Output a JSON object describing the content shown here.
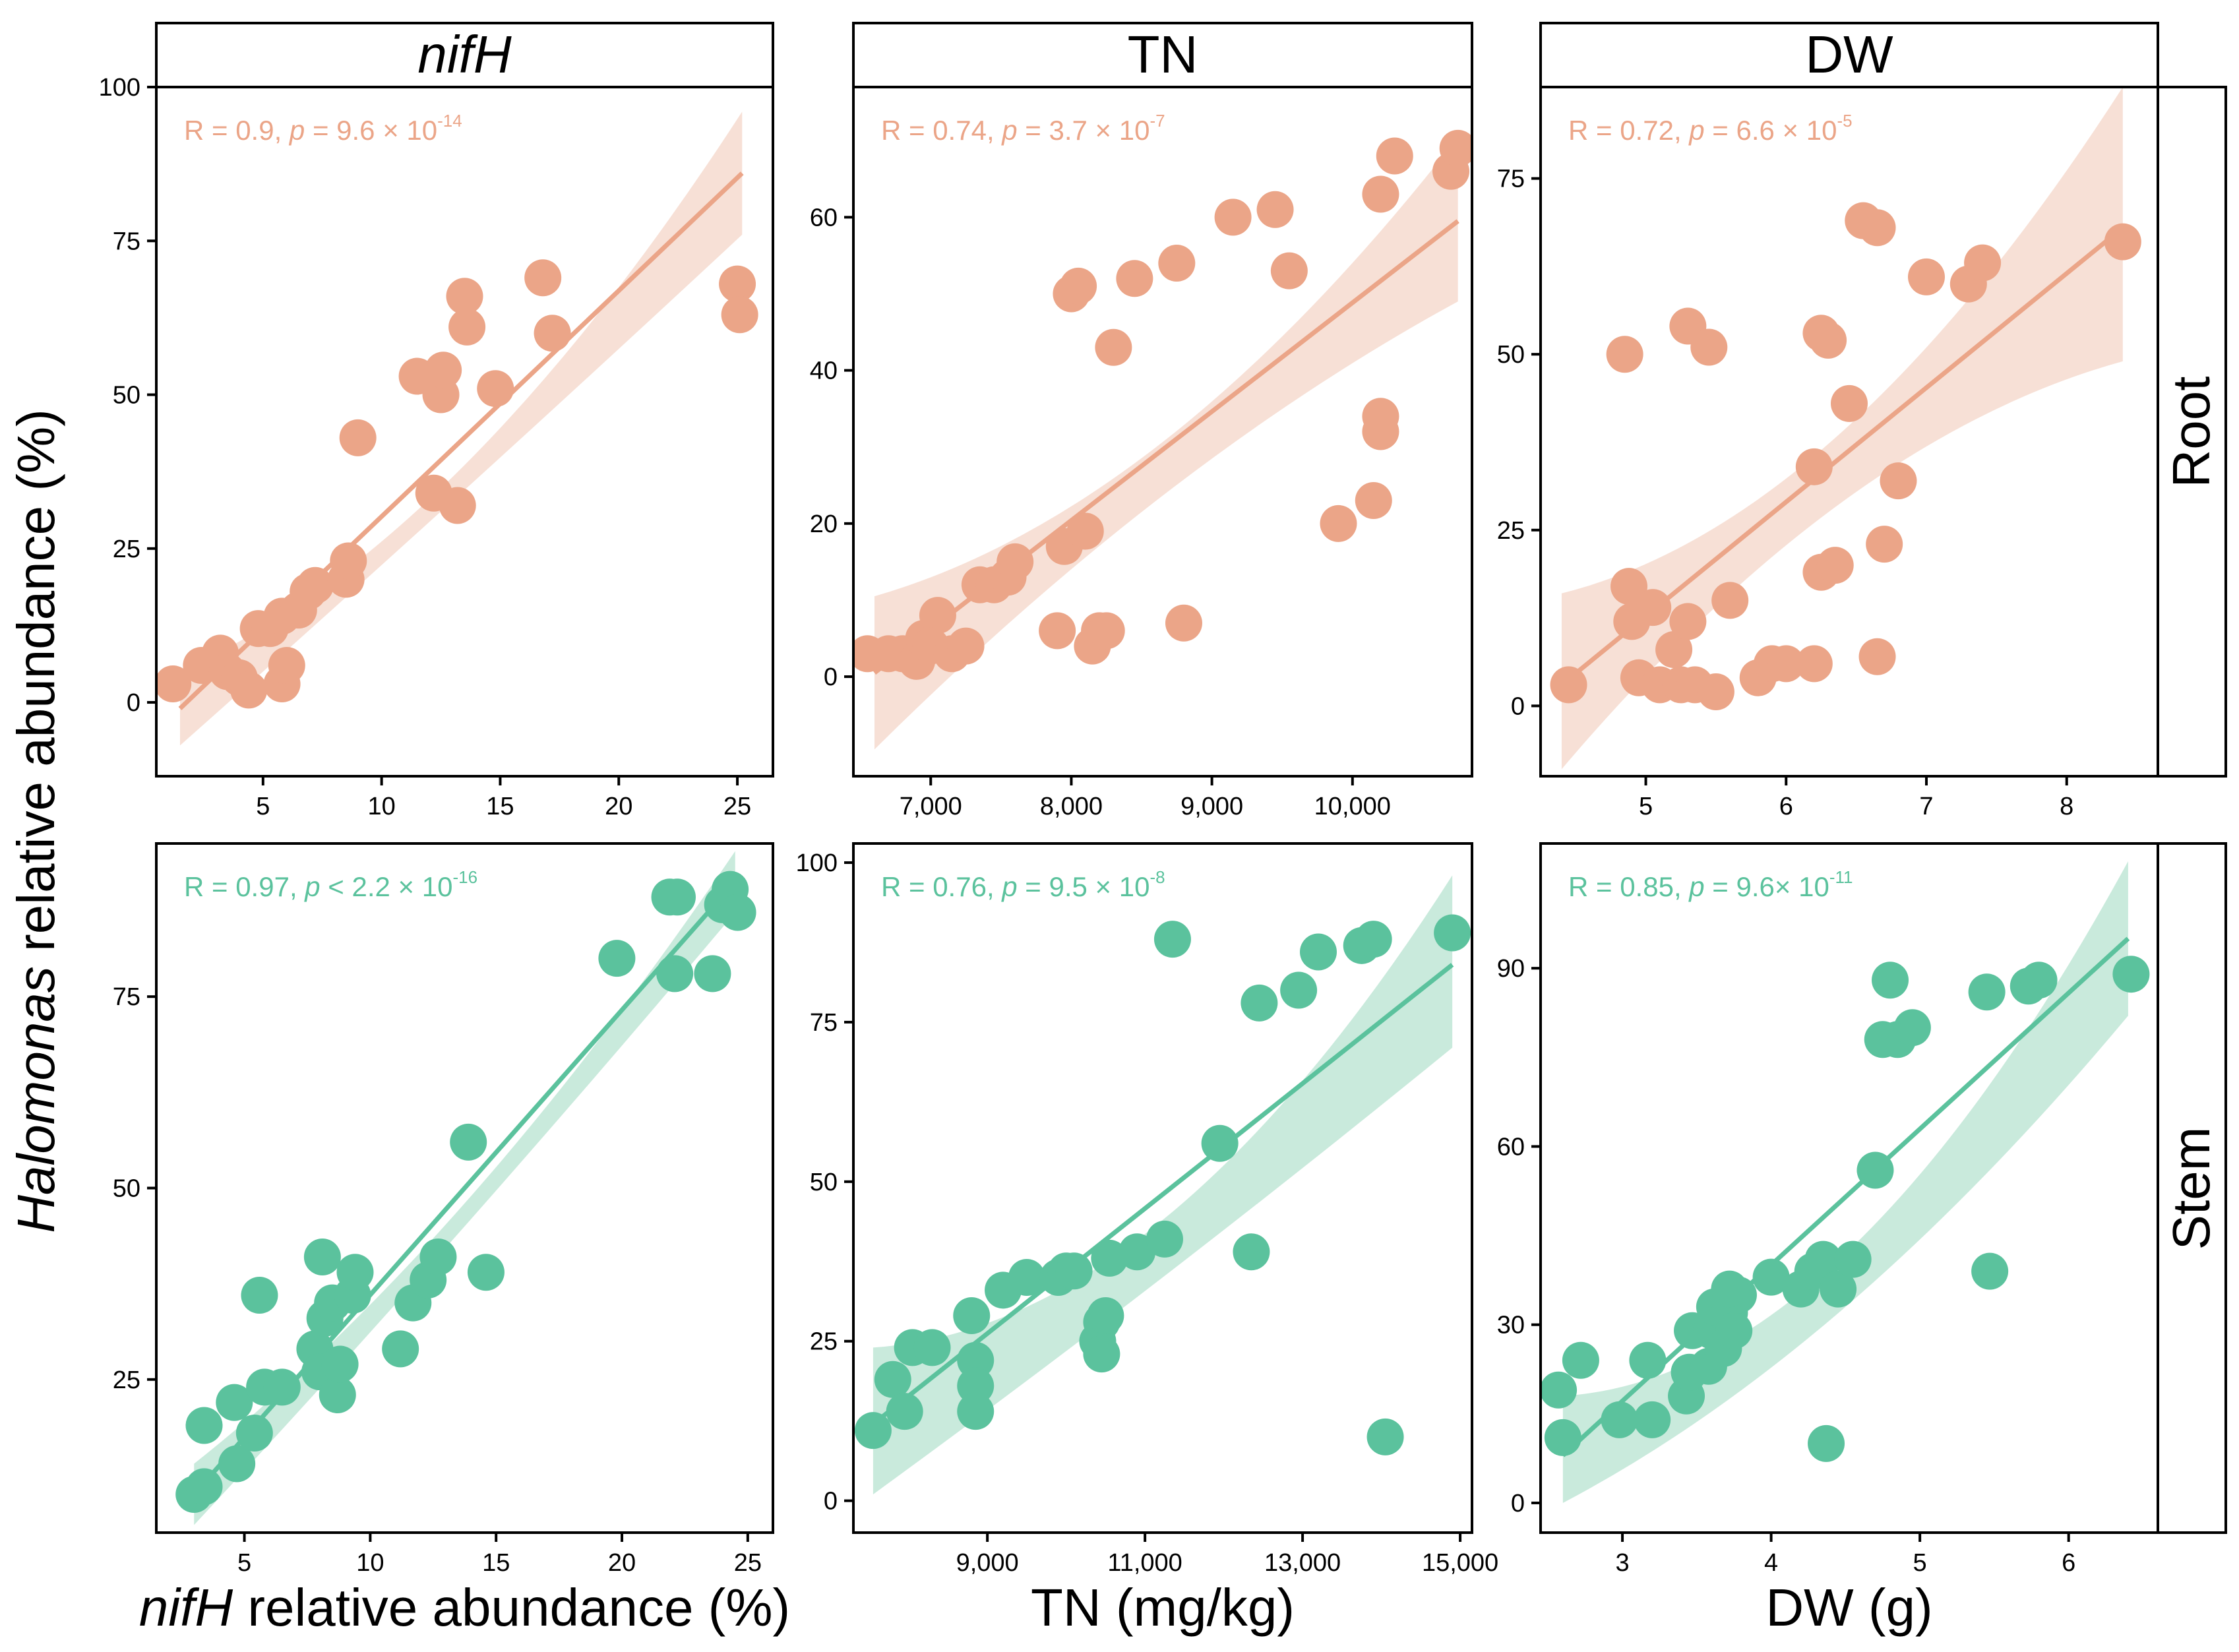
{
  "figure": {
    "y_axis_label_italic": "Halomonas",
    "y_axis_label_rest": " relative abundance (%)",
    "row_labels": [
      "Root",
      "Stem"
    ],
    "colors": {
      "root": "#EBA588",
      "stem": "#5BC29D",
      "root_band": "#F6DACF",
      "stem_band": "#BFE6D6",
      "axis": "#000000"
    }
  },
  "chart_data": [
    {
      "type": "scatter",
      "row": "Root",
      "column": "nifH",
      "strip_title": "nifH",
      "strip_italic": true,
      "xlabel": "",
      "ylabel": "Halomonas relative abundance (%)",
      "xlim": [
        0.5,
        26.5
      ],
      "ylim": [
        -12,
        100
      ],
      "xticks": [
        5,
        10,
        15,
        20,
        25
      ],
      "xtick_labels": [
        "5",
        "10",
        "15",
        "20",
        "25"
      ],
      "yticks": [
        0,
        25,
        50,
        75,
        100
      ],
      "ytick_labels": [
        "0",
        "25",
        "50",
        "75",
        "100"
      ],
      "annotation": {
        "r_text": "R = 0.9, ",
        "p_italic": "p",
        "p_text": " = 9.6 × 10",
        "p_exp": "-14"
      },
      "fit": {
        "x_start": 1.5,
        "x_end": 25.2,
        "y_start": -1,
        "y_end": 86,
        "band_start": [
          -7,
          5
        ],
        "band_mid": [
          34,
          38
        ],
        "band_end": [
          76,
          96
        ]
      },
      "points": [
        [
          1.2,
          3
        ],
        [
          2.4,
          6
        ],
        [
          3.2,
          8
        ],
        [
          3.5,
          5
        ],
        [
          4.0,
          4
        ],
        [
          4.4,
          2
        ],
        [
          4.8,
          12
        ],
        [
          5.3,
          12
        ],
        [
          5.8,
          14
        ],
        [
          6.5,
          15
        ],
        [
          6.9,
          18
        ],
        [
          7.2,
          19
        ],
        [
          5.8,
          3
        ],
        [
          6.0,
          6
        ],
        [
          8.5,
          20
        ],
        [
          8.6,
          23
        ],
        [
          9.0,
          43
        ],
        [
          11.5,
          53
        ],
        [
          12.2,
          34
        ],
        [
          12.5,
          50
        ],
        [
          12.6,
          54
        ],
        [
          13.2,
          32
        ],
        [
          13.5,
          66
        ],
        [
          13.6,
          61
        ],
        [
          14.8,
          51
        ],
        [
          16.8,
          69
        ],
        [
          17.2,
          60
        ],
        [
          25.0,
          68
        ],
        [
          25.1,
          63
        ]
      ]
    },
    {
      "type": "scatter",
      "row": "Root",
      "column": "TN",
      "strip_title": "TN",
      "strip_italic": false,
      "xlabel": "",
      "ylabel": "",
      "xlim": [
        6450,
        10850
      ],
      "ylim": [
        -13,
        77
      ],
      "xticks": [
        7000,
        8000,
        9000,
        10000
      ],
      "xtick_labels": [
        "7,000",
        "8,000",
        "9,000",
        "10,000"
      ],
      "yticks": [
        0,
        20,
        40,
        60
      ],
      "ytick_labels": [
        "0",
        "20",
        "40",
        "60"
      ],
      "annotation": {
        "r_text": "R = 0.74, ",
        "p_italic": "p",
        "p_text": " = 3.7 × 10",
        "p_exp": "-7"
      },
      "fit": {
        "x_start": 6600,
        "x_end": 10750,
        "y_start": 0.5,
        "y_end": 59.5,
        "band_start": [
          -9.5,
          10.5
        ],
        "band_mid": [
          24,
          31
        ],
        "band_end": [
          49,
          70.5
        ]
      },
      "points": [
        [
          6550,
          3
        ],
        [
          6700,
          3
        ],
        [
          6800,
          3
        ],
        [
          6900,
          2
        ],
        [
          6950,
          5
        ],
        [
          7050,
          8
        ],
        [
          7000,
          4
        ],
        [
          7150,
          3
        ],
        [
          7250,
          4
        ],
        [
          7350,
          12
        ],
        [
          7450,
          12
        ],
        [
          7550,
          13
        ],
        [
          7600,
          15
        ],
        [
          7950,
          17
        ],
        [
          7900,
          6
        ],
        [
          8000,
          50
        ],
        [
          8050,
          51
        ],
        [
          8100,
          19
        ],
        [
          8150,
          4
        ],
        [
          8200,
          6
        ],
        [
          8250,
          6
        ],
        [
          8300,
          43
        ],
        [
          8450,
          52
        ],
        [
          8750,
          54
        ],
        [
          8800,
          7
        ],
        [
          9150,
          60
        ],
        [
          9450,
          61
        ],
        [
          9550,
          53
        ],
        [
          9900,
          20
        ],
        [
          10150,
          23
        ],
        [
          10200,
          32
        ],
        [
          10200,
          34
        ],
        [
          10200,
          63
        ],
        [
          10300,
          68
        ],
        [
          10700,
          66
        ],
        [
          10750,
          69
        ]
      ]
    },
    {
      "type": "scatter",
      "row": "Root",
      "column": "DW",
      "strip_title": "DW",
      "strip_italic": false,
      "xlabel": "",
      "ylabel": "",
      "xlim": [
        4.25,
        8.65
      ],
      "ylim": [
        -10,
        88
      ],
      "xticks": [
        5,
        6,
        7,
        8
      ],
      "xtick_labels": [
        "5",
        "6",
        "7",
        "8"
      ],
      "yticks": [
        0,
        25,
        50,
        75
      ],
      "ytick_labels": [
        "0",
        "25",
        "50",
        "75"
      ],
      "annotation": {
        "r_text": "R = 0.72, ",
        "p_italic": "p",
        "p_text": " = 6.6 × 10",
        "p_exp": "-5"
      },
      "fit": {
        "x_start": 4.4,
        "x_end": 8.4,
        "y_start": 3,
        "y_end": 68,
        "band_start": [
          -9,
          16
        ],
        "band_mid": [
          29,
          39
        ],
        "band_end": [
          49,
          88
        ]
      },
      "points": [
        [
          4.45,
          3
        ],
        [
          4.85,
          50
        ],
        [
          4.88,
          17
        ],
        [
          4.9,
          12
        ],
        [
          4.95,
          4
        ],
        [
          5.05,
          14
        ],
        [
          5.1,
          3
        ],
        [
          5.2,
          8
        ],
        [
          5.25,
          3
        ],
        [
          5.3,
          12
        ],
        [
          5.3,
          54
        ],
        [
          5.35,
          3
        ],
        [
          5.45,
          51
        ],
        [
          5.5,
          2
        ],
        [
          5.6,
          15
        ],
        [
          5.8,
          4
        ],
        [
          5.9,
          6
        ],
        [
          6.0,
          6
        ],
        [
          6.2,
          6
        ],
        [
          6.2,
          34
        ],
        [
          6.25,
          19
        ],
        [
          6.25,
          53
        ],
        [
          6.3,
          52
        ],
        [
          6.35,
          20
        ],
        [
          6.45,
          43
        ],
        [
          6.55,
          69
        ],
        [
          6.65,
          68
        ],
        [
          6.65,
          7
        ],
        [
          6.7,
          23
        ],
        [
          6.8,
          32
        ],
        [
          7.0,
          61
        ],
        [
          7.3,
          60
        ],
        [
          7.4,
          63
        ],
        [
          8.4,
          66
        ]
      ]
    },
    {
      "type": "scatter",
      "row": "Stem",
      "column": "nifH",
      "strip_title": "",
      "strip_italic": false,
      "xlabel_italic": "nifH",
      "xlabel": " relative abundance (%)",
      "ylabel": "Halomonas relative abundance (%)",
      "xlim": [
        1.5,
        26
      ],
      "ylim": [
        5,
        95
      ],
      "xticks": [
        5,
        10,
        15,
        20,
        25
      ],
      "xtick_labels": [
        "5",
        "10",
        "15",
        "20",
        "25"
      ],
      "yticks": [
        25,
        50,
        75
      ],
      "ytick_labels": [
        "25",
        "50",
        "75"
      ],
      "annotation": {
        "r_text": "R = 0.97, ",
        "p_italic": "p",
        "p_text": " < 2.2 × 10",
        "p_exp": "-16"
      },
      "fit": {
        "x_start": 3,
        "x_end": 24.5,
        "y_start": 10,
        "y_end": 90,
        "band_start": [
          6,
          14
        ],
        "band_mid": [
          45,
          48
        ],
        "band_end": [
          86,
          94
        ]
      },
      "points": [
        [
          3.0,
          10
        ],
        [
          3.4,
          11
        ],
        [
          3.4,
          19
        ],
        [
          4.6,
          22
        ],
        [
          4.7,
          14
        ],
        [
          5.4,
          18
        ],
        [
          5.6,
          36
        ],
        [
          5.8,
          24
        ],
        [
          6.5,
          24
        ],
        [
          7.8,
          29
        ],
        [
          8.0,
          26
        ],
        [
          8.1,
          41
        ],
        [
          8.2,
          33
        ],
        [
          8.5,
          35
        ],
        [
          8.7,
          23
        ],
        [
          8.8,
          27
        ],
        [
          9.3,
          36
        ],
        [
          9.4,
          39
        ],
        [
          11.2,
          29
        ],
        [
          11.7,
          35
        ],
        [
          12.3,
          38
        ],
        [
          12.7,
          41
        ],
        [
          13.9,
          56
        ],
        [
          14.6,
          39
        ],
        [
          19.8,
          80
        ],
        [
          21.9,
          88
        ],
        [
          22.1,
          78
        ],
        [
          22.2,
          88
        ],
        [
          23.6,
          78
        ],
        [
          24.0,
          87
        ],
        [
          24.3,
          89
        ],
        [
          24.6,
          86
        ]
      ]
    },
    {
      "type": "scatter",
      "row": "Stem",
      "column": "TN",
      "strip_title": "",
      "strip_italic": false,
      "xlabel": "TN (mg/kg)",
      "ylabel": "",
      "xlim": [
        7300,
        15150
      ],
      "ylim": [
        -5,
        103
      ],
      "xticks": [
        9000,
        11000,
        13000,
        15000
      ],
      "xtick_labels": [
        "9,000",
        "11,000",
        "13,000",
        "15,000"
      ],
      "yticks": [
        0,
        25,
        50,
        75,
        100
      ],
      "ytick_labels": [
        "0",
        "25",
        "50",
        "75",
        "100"
      ],
      "annotation": {
        "r_text": "R = 0.76, ",
        "p_italic": "p",
        "p_text": " = 9.5 × 10",
        "p_exp": "-8"
      },
      "fit": {
        "x_start": 7550,
        "x_end": 14900,
        "y_start": 12,
        "y_end": 84,
        "band_start": [
          1,
          24
        ],
        "band_mid": [
          35,
          44
        ],
        "band_end": [
          71,
          98
        ]
      },
      "points": [
        [
          7550,
          11
        ],
        [
          7800,
          19
        ],
        [
          7950,
          14
        ],
        [
          8050,
          24
        ],
        [
          8300,
          24
        ],
        [
          8800,
          29
        ],
        [
          8850,
          22
        ],
        [
          8850,
          18
        ],
        [
          8850,
          14
        ],
        [
          9200,
          33
        ],
        [
          9500,
          35
        ],
        [
          9900,
          35
        ],
        [
          10000,
          36
        ],
        [
          10100,
          36
        ],
        [
          10400,
          25
        ],
        [
          10450,
          28
        ],
        [
          10450,
          23
        ],
        [
          10500,
          29
        ],
        [
          10550,
          38
        ],
        [
          10900,
          39
        ],
        [
          11250,
          41
        ],
        [
          11350,
          88
        ],
        [
          11950,
          56
        ],
        [
          12350,
          39
        ],
        [
          12450,
          78
        ],
        [
          12950,
          80
        ],
        [
          13200,
          86
        ],
        [
          13750,
          87
        ],
        [
          13900,
          88
        ],
        [
          14050,
          10
        ],
        [
          14900,
          89
        ]
      ]
    },
    {
      "type": "scatter",
      "row": "Stem",
      "column": "DW",
      "strip_title": "",
      "strip_italic": false,
      "xlabel": "DW (g)",
      "ylabel": "",
      "xlim": [
        2.45,
        6.6
      ],
      "ylim": [
        -5,
        111
      ],
      "xticks": [
        3,
        4,
        5,
        6
      ],
      "xtick_labels": [
        "3",
        "4",
        "5",
        "6"
      ],
      "yticks": [
        0,
        30,
        60,
        90
      ],
      "ytick_labels": [
        "0",
        "30",
        "60",
        "90"
      ],
      "annotation": {
        "r_text": "R = 0.85, ",
        "p_italic": "p",
        "p_text": " = 9.6× 10",
        "p_exp": "-11"
      },
      "fit": {
        "x_start": 2.6,
        "x_end": 6.4,
        "y_start": 8,
        "y_end": 95,
        "band_start": [
          0,
          18
        ],
        "band_mid": [
          33,
          42
        ],
        "band_end": [
          82,
          108
        ]
      },
      "points": [
        [
          2.57,
          19
        ],
        [
          2.6,
          11
        ],
        [
          2.72,
          24
        ],
        [
          2.98,
          14
        ],
        [
          3.17,
          24
        ],
        [
          3.2,
          14
        ],
        [
          3.43,
          18
        ],
        [
          3.45,
          22
        ],
        [
          3.47,
          29
        ],
        [
          3.58,
          23
        ],
        [
          3.6,
          29
        ],
        [
          3.62,
          33
        ],
        [
          3.68,
          26
        ],
        [
          3.72,
          32
        ],
        [
          3.75,
          29
        ],
        [
          3.78,
          35
        ],
        [
          3.72,
          36
        ],
        [
          4.0,
          38
        ],
        [
          4.2,
          36
        ],
        [
          4.28,
          39
        ],
        [
          4.35,
          41
        ],
        [
          4.37,
          10
        ],
        [
          4.45,
          36
        ],
        [
          4.55,
          41
        ],
        [
          4.7,
          56
        ],
        [
          4.75,
          78
        ],
        [
          4.8,
          88
        ],
        [
          4.85,
          78
        ],
        [
          4.95,
          80
        ],
        [
          5.45,
          86
        ],
        [
          5.47,
          39
        ],
        [
          5.73,
          87
        ],
        [
          5.8,
          88
        ],
        [
          6.42,
          89
        ]
      ]
    }
  ]
}
